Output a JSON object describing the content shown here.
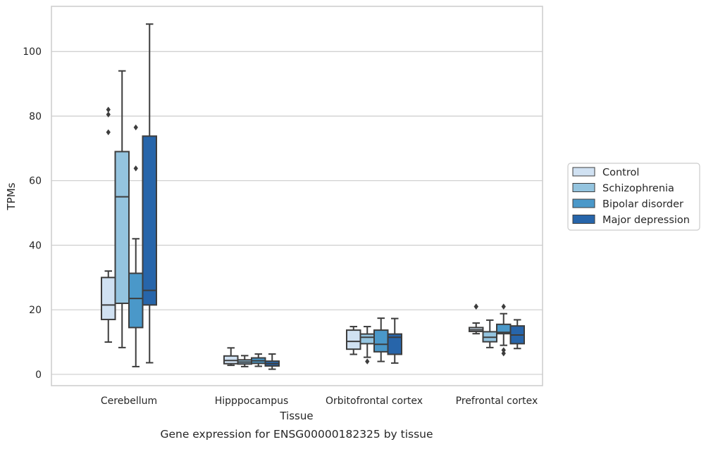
{
  "chart_data": {
    "type": "boxplot",
    "title": "Gene expression for ENSG00000182325 by tissue",
    "xlabel": "Tissue",
    "ylabel": "TPMs",
    "ylim": [
      -3.5,
      114
    ],
    "yticks": [
      0,
      20,
      40,
      60,
      80,
      100
    ],
    "grid": "horizontal",
    "legend_position": "right",
    "categories": [
      "Cerebellum",
      "Hipppocampus",
      "Orbitofrontal cortex",
      "Prefrontal cortex"
    ],
    "series": [
      {
        "name": "Control",
        "color": "#d0e1f2",
        "boxes": [
          {
            "whisker_low": 10,
            "q1": 17,
            "median": 21.5,
            "q3": 30,
            "whisker_high": 32,
            "outliers": [
              75,
              80.5,
              82
            ]
          },
          {
            "whisker_low": 2.8,
            "q1": 3.3,
            "median": 4.3,
            "q3": 5.7,
            "whisker_high": 8.2,
            "outliers": []
          },
          {
            "whisker_low": 6.2,
            "q1": 7.8,
            "median": 10.2,
            "q3": 13.7,
            "whisker_high": 14.8,
            "outliers": []
          },
          {
            "whisker_low": 12.6,
            "q1": 13.3,
            "median": 13.8,
            "q3": 14.5,
            "whisker_high": 15.9,
            "outliers": [
              21,
              21
            ]
          }
        ]
      },
      {
        "name": "Schizophrenia",
        "color": "#94c4df",
        "boxes": [
          {
            "whisker_low": 8.3,
            "q1": 22,
            "median": 55,
            "q3": 69,
            "whisker_high": 94,
            "outliers": []
          },
          {
            "whisker_low": 2.4,
            "q1": 3.2,
            "median": 3.8,
            "q3": 4.5,
            "whisker_high": 5.8,
            "outliers": []
          },
          {
            "whisker_low": 5.3,
            "q1": 9.5,
            "median": 11.5,
            "q3": 12.5,
            "whisker_high": 14.8,
            "outliers": [
              4
            ]
          },
          {
            "whisker_low": 8.3,
            "q1": 10.1,
            "median": 11.5,
            "q3": 13.2,
            "whisker_high": 16.8,
            "outliers": []
          }
        ]
      },
      {
        "name": "Bipolar disorder",
        "color": "#4a98c9",
        "boxes": [
          {
            "whisker_low": 2.4,
            "q1": 14.5,
            "median": 23.5,
            "q3": 31.3,
            "whisker_high": 42,
            "outliers": [
              63.8,
              76.5
            ]
          },
          {
            "whisker_low": 2.5,
            "q1": 3.4,
            "median": 4.2,
            "q3": 5.1,
            "whisker_high": 6.3,
            "outliers": []
          },
          {
            "whisker_low": 4,
            "q1": 7,
            "median": 9.3,
            "q3": 13.7,
            "whisker_high": 17.4,
            "outliers": []
          },
          {
            "whisker_low": 9,
            "q1": 12.6,
            "median": 13,
            "q3": 15.5,
            "whisker_high": 18.8,
            "outliers": [
              6.5,
              7.5,
              21
            ]
          }
        ]
      },
      {
        "name": "Major depression",
        "color": "#2765aa",
        "boxes": [
          {
            "whisker_low": 3.6,
            "q1": 21.5,
            "median": 26,
            "q3": 73.8,
            "whisker_high": 108.5,
            "outliers": []
          },
          {
            "whisker_low": 1.6,
            "q1": 2.6,
            "median": 3.3,
            "q3": 4.1,
            "whisker_high": 6.3,
            "outliers": []
          },
          {
            "whisker_low": 3.5,
            "q1": 6.2,
            "median": 11.5,
            "q3": 12.5,
            "whisker_high": 17.3,
            "outliers": []
          },
          {
            "whisker_low": 8,
            "q1": 9.5,
            "median": 12.2,
            "q3": 15,
            "whisker_high": 16.9,
            "outliers": []
          }
        ]
      }
    ]
  }
}
